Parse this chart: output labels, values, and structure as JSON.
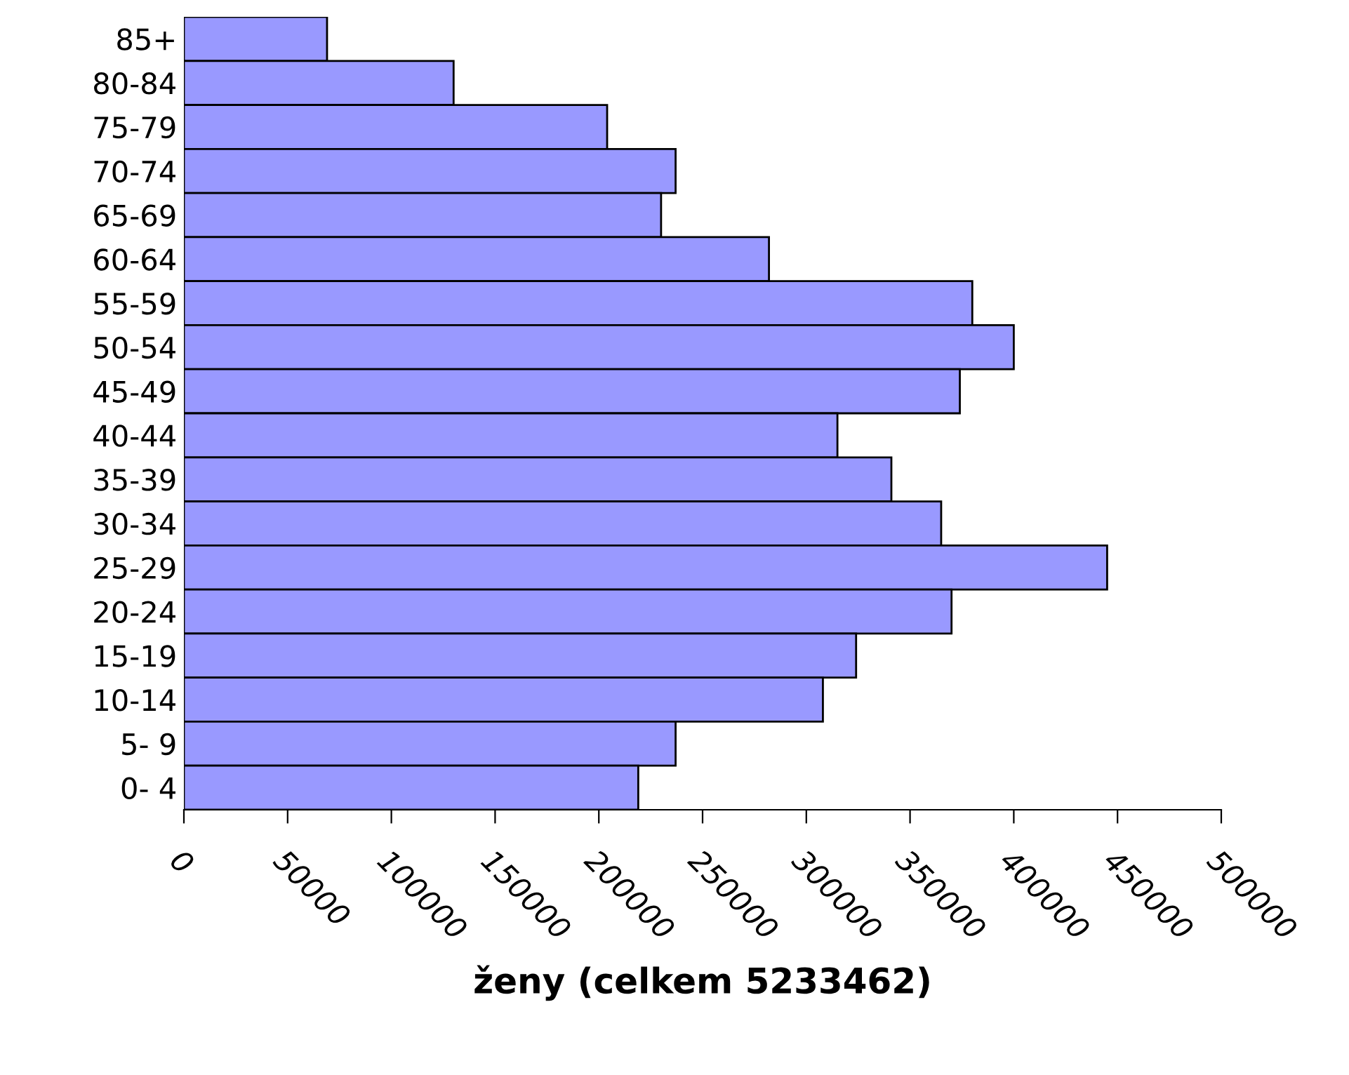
{
  "chart_data": {
    "type": "bar",
    "orientation": "horizontal",
    "xlabel": "ženy (celkem 5233462)",
    "categories": [
      "85+",
      "80-84",
      "75-79",
      "70-74",
      "65-69",
      "60-64",
      "55-59",
      "50-54",
      "45-49",
      "40-44",
      "35-39",
      "30-34",
      "25-29",
      "20-24",
      "15-19",
      "10-14",
      "5- 9",
      "0- 4"
    ],
    "values": [
      69000,
      130000,
      204000,
      237000,
      230000,
      282000,
      380000,
      400000,
      374000,
      315000,
      341000,
      365000,
      445000,
      370000,
      324000,
      308000,
      237000,
      219000
    ],
    "color": "#9999ff",
    "xlim": [
      0,
      500000
    ],
    "xticks": [
      0,
      50000,
      100000,
      150000,
      200000,
      250000,
      300000,
      350000,
      400000,
      450000,
      500000
    ],
    "grid": false,
    "legend": false
  }
}
